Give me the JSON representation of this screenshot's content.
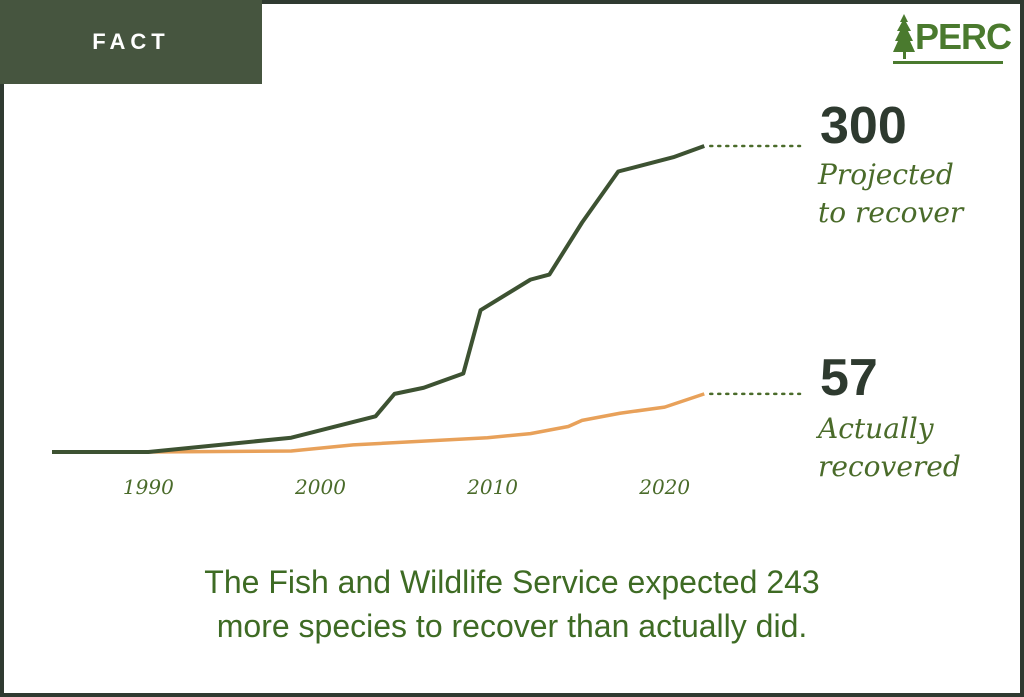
{
  "header": {
    "tag": "FACT",
    "logo": "PERC"
  },
  "chart_data": {
    "type": "line",
    "title": "",
    "xlabel": "",
    "ylabel": "",
    "xlim": [
      1984.4,
      2022.4
    ],
    "ylim": [
      0,
      300
    ],
    "x_ticks": [
      "1990",
      "2000",
      "2010",
      "2020"
    ],
    "grid": false,
    "series": [
      {
        "name": "Projected to recover",
        "color": "#3d5232",
        "x": [
          1984.4,
          1990,
          1998.3,
          2003.2,
          2004.3,
          2006.0,
          2008.3,
          2009.3,
          2012.2,
          2013.3,
          2015.2,
          2017.3,
          2020.5,
          2022.3
        ],
        "y": [
          0,
          0,
          14,
          35,
          57,
          63,
          77,
          139,
          169,
          174,
          225,
          275,
          289,
          300
        ],
        "end_value": "300",
        "end_label_1": "Projected",
        "end_label_2": "to recover"
      },
      {
        "name": "Actually recovered",
        "color": "#e8a15a",
        "x": [
          1984.4,
          1990,
          1998.3,
          2001.9,
          2009.7,
          2012.2,
          2014.4,
          2015.2,
          2017.4,
          2020,
          2022.3
        ],
        "y": [
          0,
          0,
          1,
          7,
          14,
          18,
          25,
          31,
          38,
          44,
          57
        ],
        "end_value": "57",
        "end_label_1": "Actually",
        "end_label_2": "recovered"
      }
    ]
  },
  "caption": {
    "line1": "The Fish and Wildlife Service expected 243",
    "line2": "more species to recover than actually did."
  }
}
